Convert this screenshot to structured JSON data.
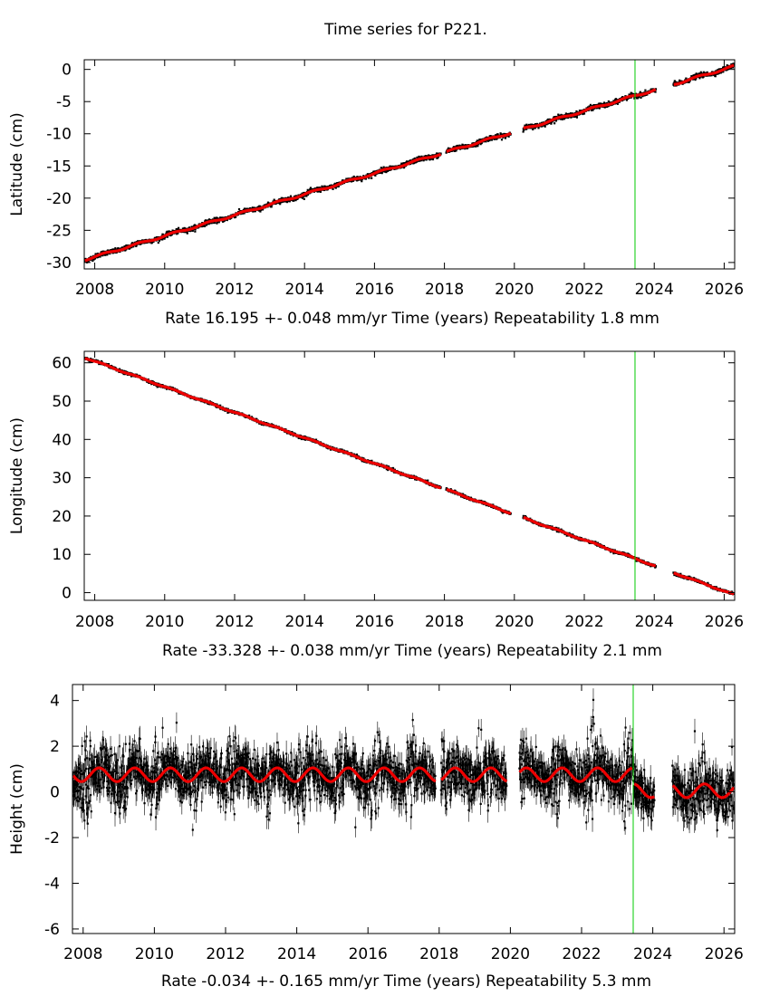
{
  "title": "Time series for P221.",
  "event_line_year": 2023.45,
  "colors": {
    "data": "#000000",
    "model": "#ee0000",
    "event": "#00cc00",
    "frame": "#000000"
  },
  "chart_data": [
    {
      "type": "scatter",
      "ylabel": "Latitude (cm)",
      "xlabel": "Time (years)",
      "rate_text": "Rate 16.195 +- 0.048 mm/yr",
      "repeatability_text": "Repeatability 1.8 mm",
      "xlim": [
        2007.7,
        2026.3
      ],
      "ylim": [
        -31,
        1.5
      ],
      "x_ticks": [
        2008,
        2010,
        2012,
        2014,
        2016,
        2018,
        2020,
        2022,
        2024,
        2026
      ],
      "y_ticks": [
        0,
        -5,
        -10,
        -15,
        -20,
        -25,
        -30
      ],
      "trend": {
        "start_year": 2007.7,
        "start_value": -29.6,
        "rate_per_year": 1.6195
      },
      "seasonal_amplitude": 0.15,
      "gaps": [
        [
          2017.9,
          2018.05
        ],
        [
          2019.9,
          2020.25
        ],
        [
          2024.05,
          2024.55
        ]
      ],
      "grid": false
    },
    {
      "type": "scatter",
      "ylabel": "Longitude (cm)",
      "xlabel": "Time (years)",
      "rate_text": "Rate -33.328 +- 0.038 mm/yr",
      "repeatability_text": "Repeatability 2.1 mm",
      "xlim": [
        2007.7,
        2026.3
      ],
      "ylim": [
        -2,
        63
      ],
      "x_ticks": [
        2008,
        2010,
        2012,
        2014,
        2016,
        2018,
        2020,
        2022,
        2024,
        2026
      ],
      "y_ticks": [
        60,
        50,
        40,
        30,
        20,
        10,
        0
      ],
      "trend": {
        "start_year": 2007.7,
        "start_value": 61.4,
        "rate_per_year": -3.3328
      },
      "seasonal_amplitude": 0.15,
      "gaps": [
        [
          2017.9,
          2018.05
        ],
        [
          2019.9,
          2020.25
        ],
        [
          2024.05,
          2024.55
        ]
      ],
      "grid": false
    },
    {
      "type": "scatter",
      "ylabel": "Height (cm)",
      "xlabel": "Time (years)",
      "rate_text": "Rate -0.034 +- 0.165 mm/yr",
      "repeatability_text": "Repeatability 5.3 mm",
      "xlim": [
        2007.7,
        2026.3
      ],
      "ylim": [
        -6.2,
        4.7
      ],
      "x_ticks": [
        2008,
        2010,
        2012,
        2014,
        2016,
        2018,
        2020,
        2022,
        2024,
        2026
      ],
      "y_ticks": [
        4,
        2,
        0,
        -2,
        -4,
        -6
      ],
      "seasonal": {
        "amplitude": 0.3,
        "pre_event_offset": 0.75,
        "post_event_offset": 0.05,
        "period_years": 1.0
      },
      "scatter_sigma": 0.5,
      "gaps": [
        [
          2017.9,
          2018.05
        ],
        [
          2019.9,
          2020.25
        ],
        [
          2024.05,
          2024.55
        ]
      ],
      "grid": false
    }
  ]
}
